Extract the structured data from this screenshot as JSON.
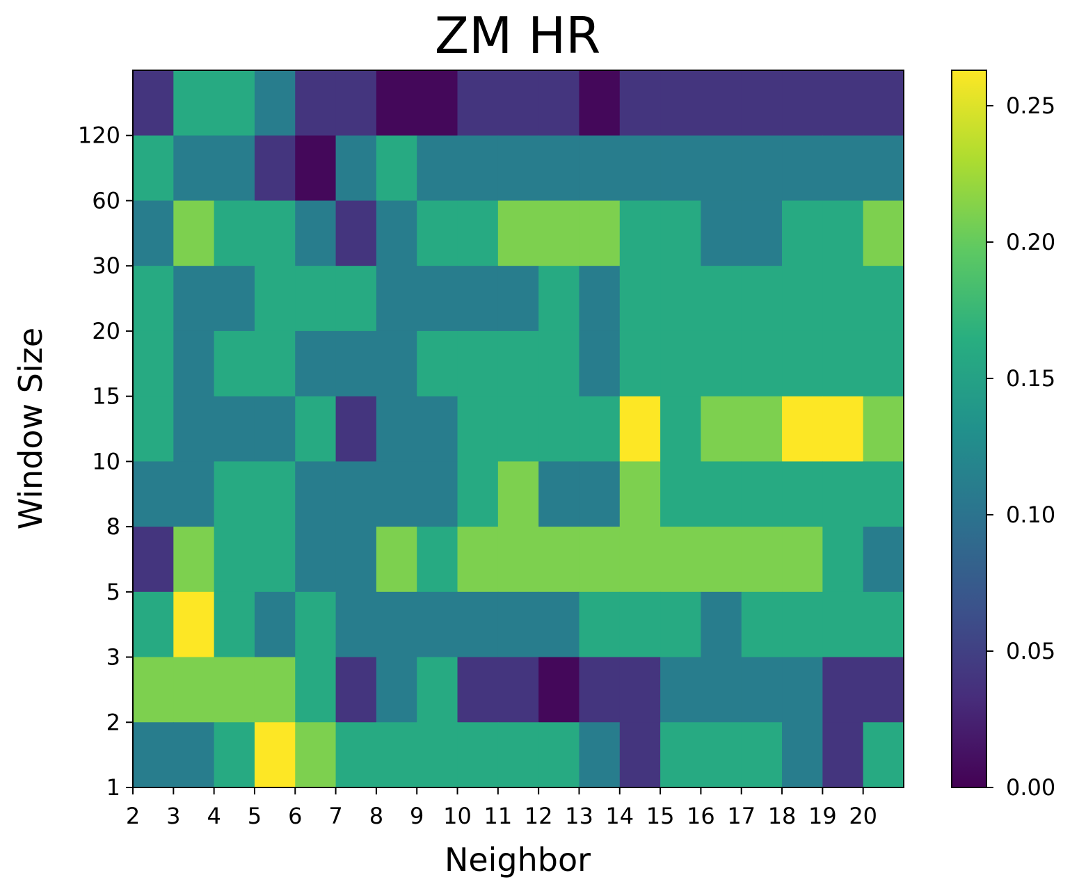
{
  "chart_data": {
    "type": "heatmap",
    "title": "ZM HR",
    "xlabel": "Neighbor",
    "ylabel": "Window Size",
    "x_tick_labels": [
      "2",
      "3",
      "4",
      "5",
      "6",
      "7",
      "8",
      "9",
      "10",
      "11",
      "12",
      "13",
      "14",
      "15",
      "16",
      "17",
      "18",
      "19",
      "20"
    ],
    "y_tick_labels": [
      "1",
      "2",
      "3",
      "5",
      "8",
      "10",
      "15",
      "20",
      "30",
      "60",
      "120"
    ],
    "colormap": "viridis",
    "colorbar": {
      "vmin": 0.0,
      "vmax": 0.263,
      "ticks": [
        0.0,
        0.05,
        0.1,
        0.15,
        0.2,
        0.25
      ],
      "tick_labels": [
        "0.00",
        "0.05",
        "0.10",
        "0.15",
        "0.20",
        "0.25"
      ]
    },
    "grid": false,
    "rows_top_to_bottom": [
      [
        0.04,
        0.16,
        0.16,
        0.11,
        0.04,
        0.04,
        0.005,
        0.005,
        0.04,
        0.04,
        0.04,
        0.005,
        0.04,
        0.04,
        0.04,
        0.04,
        0.04,
        0.04,
        0.04
      ],
      [
        0.16,
        0.11,
        0.11,
        0.04,
        0.005,
        0.11,
        0.16,
        0.11,
        0.11,
        0.11,
        0.11,
        0.11,
        0.11,
        0.11,
        0.11,
        0.11,
        0.11,
        0.11,
        0.11
      ],
      [
        0.11,
        0.21,
        0.16,
        0.16,
        0.11,
        0.04,
        0.11,
        0.16,
        0.16,
        0.21,
        0.21,
        0.21,
        0.16,
        0.16,
        0.11,
        0.11,
        0.16,
        0.16,
        0.21
      ],
      [
        0.16,
        0.11,
        0.11,
        0.16,
        0.16,
        0.16,
        0.11,
        0.11,
        0.11,
        0.11,
        0.16,
        0.11,
        0.16,
        0.16,
        0.16,
        0.16,
        0.16,
        0.16,
        0.16
      ],
      [
        0.16,
        0.11,
        0.16,
        0.16,
        0.11,
        0.11,
        0.11,
        0.16,
        0.16,
        0.16,
        0.16,
        0.11,
        0.16,
        0.16,
        0.16,
        0.16,
        0.16,
        0.16,
        0.16
      ],
      [
        0.16,
        0.11,
        0.11,
        0.11,
        0.16,
        0.04,
        0.11,
        0.11,
        0.16,
        0.16,
        0.16,
        0.16,
        0.263,
        0.16,
        0.21,
        0.21,
        0.263,
        0.263,
        0.21
      ],
      [
        0.11,
        0.11,
        0.16,
        0.16,
        0.11,
        0.11,
        0.11,
        0.11,
        0.16,
        0.21,
        0.11,
        0.11,
        0.21,
        0.16,
        0.16,
        0.16,
        0.16,
        0.16,
        0.16
      ],
      [
        0.04,
        0.21,
        0.16,
        0.16,
        0.11,
        0.11,
        0.21,
        0.16,
        0.21,
        0.21,
        0.21,
        0.21,
        0.21,
        0.21,
        0.21,
        0.21,
        0.21,
        0.16,
        0.11
      ],
      [
        0.16,
        0.263,
        0.16,
        0.11,
        0.16,
        0.11,
        0.11,
        0.11,
        0.11,
        0.11,
        0.11,
        0.16,
        0.16,
        0.16,
        0.11,
        0.16,
        0.16,
        0.16,
        0.16
      ],
      [
        0.21,
        0.21,
        0.21,
        0.21,
        0.16,
        0.04,
        0.11,
        0.16,
        0.04,
        0.04,
        0.005,
        0.04,
        0.04,
        0.11,
        0.11,
        0.11,
        0.11,
        0.04,
        0.04
      ],
      [
        0.11,
        0.11,
        0.16,
        0.263,
        0.21,
        0.16,
        0.16,
        0.16,
        0.16,
        0.16,
        0.16,
        0.11,
        0.04,
        0.16,
        0.16,
        0.16,
        0.11,
        0.04,
        0.16
      ]
    ]
  }
}
